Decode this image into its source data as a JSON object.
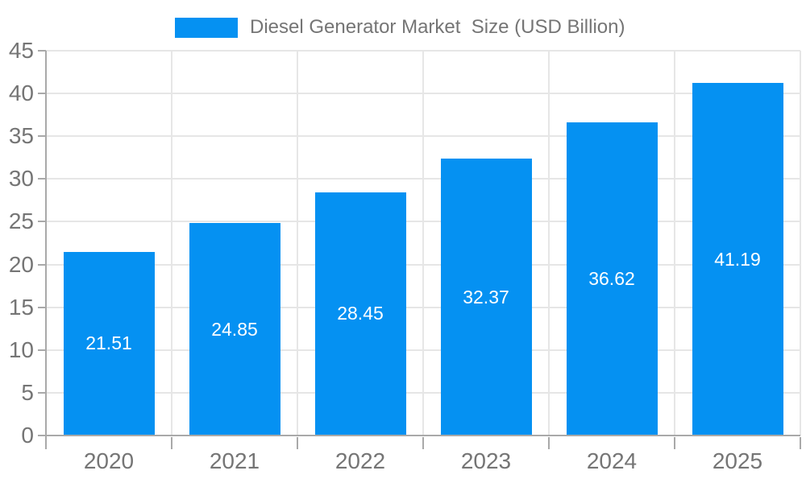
{
  "legend": {
    "label": "Diesel Generator Market  Size (USD Billion)"
  },
  "colors": {
    "bar": "#0591f2",
    "bar_label_text": "#ffffff",
    "axis_text": "#757575",
    "gridline": "#e6e6e6",
    "axis_line": "#a9a9a9",
    "background": "#ffffff"
  },
  "chart_data": {
    "type": "bar",
    "title": "Diesel Generator Market  Size (USD Billion)",
    "categories": [
      "2020",
      "2021",
      "2022",
      "2023",
      "2024",
      "2025"
    ],
    "values": [
      21.51,
      24.85,
      28.45,
      32.37,
      36.62,
      41.19
    ],
    "value_labels": [
      "21.51",
      "24.85",
      "28.45",
      "32.37",
      "36.62",
      "41.19"
    ],
    "xlabel": "",
    "ylabel": "",
    "ylim": [
      0,
      45
    ],
    "yticks": [
      0,
      5,
      10,
      15,
      20,
      25,
      30,
      35,
      40,
      45
    ],
    "grid": true,
    "legend_position": "top",
    "value_label_position": "center-inside",
    "series": [
      {
        "name": "Diesel Generator Market  Size (USD Billion)",
        "values": [
          21.51,
          24.85,
          28.45,
          32.37,
          36.62,
          41.19
        ]
      }
    ]
  }
}
